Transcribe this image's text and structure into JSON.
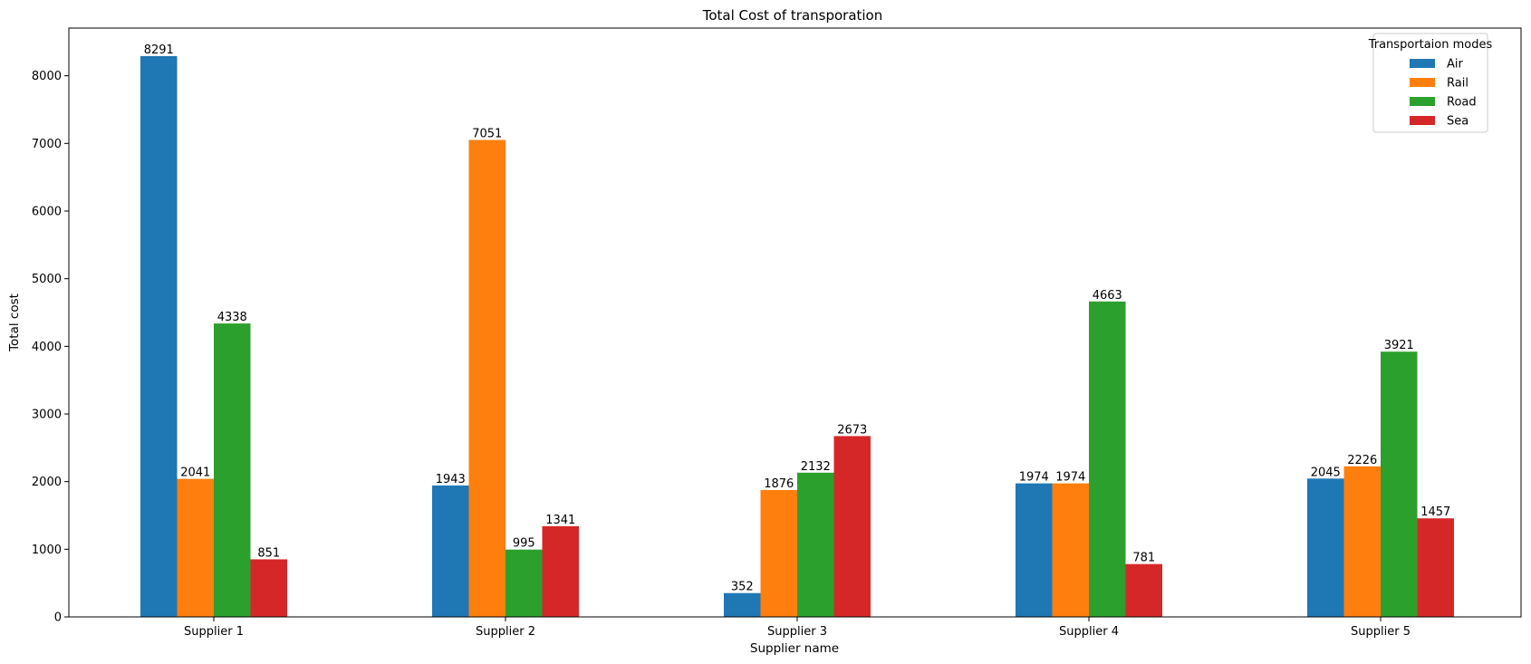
{
  "chart_data": {
    "type": "bar",
    "title": "Total Cost of transporation",
    "xlabel": "Supplier name",
    "ylabel": "Total cost",
    "categories": [
      "Supplier 1",
      "Supplier 2",
      "Supplier 3",
      "Supplier 4",
      "Supplier 5"
    ],
    "series": [
      {
        "name": "Air",
        "color": "#1f77b4",
        "values": [
          8291,
          1943,
          352,
          1974,
          2045
        ]
      },
      {
        "name": "Rail",
        "color": "#ff7f0e",
        "values": [
          2041,
          7051,
          1876,
          1974,
          2226
        ]
      },
      {
        "name": "Road",
        "color": "#2ca02c",
        "values": [
          4338,
          995,
          2132,
          4663,
          3921
        ]
      },
      {
        "name": "Sea",
        "color": "#d62728",
        "values": [
          851,
          1341,
          2673,
          781,
          1457
        ]
      }
    ],
    "ylim": [
      0,
      8705
    ],
    "yticks": [
      0,
      1000,
      2000,
      3000,
      4000,
      5000,
      6000,
      7000,
      8000
    ],
    "grid": false,
    "legend": {
      "title": "Transportaion modes",
      "position": "top-right"
    }
  }
}
